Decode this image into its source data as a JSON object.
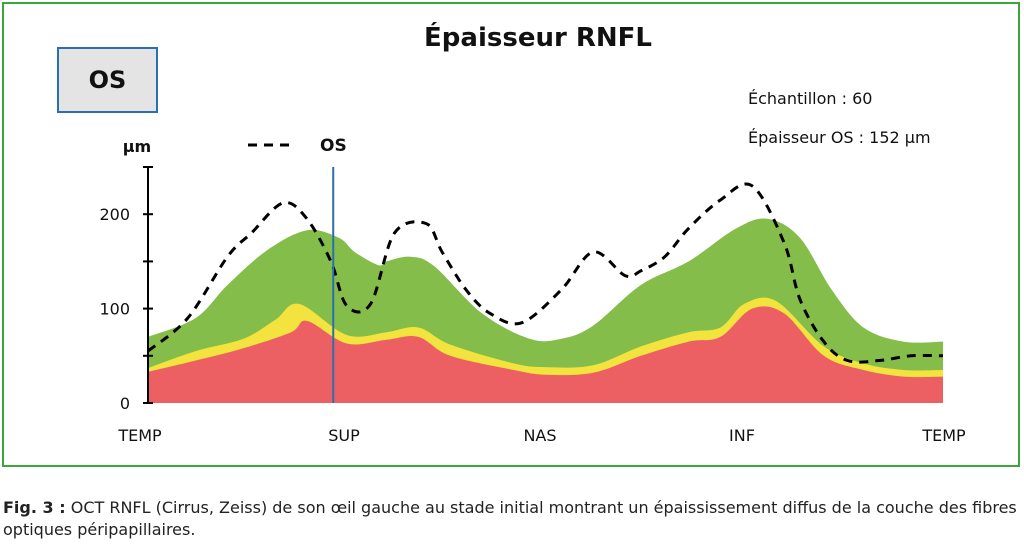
{
  "eye_label": "OS",
  "caption": {
    "fig_label": "Fig. 3 :",
    "text": "OCT RNFL (Cirrus, Zeiss) de son œil gauche au stade initial montrant un épaississement diffus de la couche des fibres optiques péripapillaires."
  },
  "info": {
    "sample": "Échantillon : 60",
    "thickness": "Épaisseur OS : 152 µm"
  },
  "chart_data": {
    "type": "area",
    "title": "Épaisseur RNFL",
    "ylabel": "µm",
    "ylim": [
      0,
      250
    ],
    "yticks": [
      0,
      100,
      200
    ],
    "xlim": [
      0,
      1
    ],
    "x_categories": [
      "TEMP",
      "SUP",
      "NAS",
      "INF",
      "TEMP"
    ],
    "x_category_positions": [
      0,
      0.25,
      0.5,
      0.75,
      1
    ],
    "grid": false,
    "legend": {
      "position": "top",
      "entries": [
        {
          "name": "OS",
          "style": "dashed-black"
        }
      ]
    },
    "marker_line": {
      "x": 0.233,
      "color": "#2c6fb0"
    },
    "colors": {
      "red": "#ec6064",
      "yellow": "#f2e33e",
      "green": "#85bd4b",
      "os": "#000000"
    },
    "bands": [
      {
        "color": "red",
        "x": [
          0,
          0.06,
          0.12,
          0.18,
          0.2,
          0.25,
          0.3,
          0.34,
          0.38,
          0.46,
          0.5,
          0.56,
          0.62,
          0.68,
          0.72,
          0.76,
          0.8,
          0.85,
          0.9,
          0.95,
          1
        ],
        "y": [
          33,
          45,
          58,
          75,
          87,
          63,
          67,
          70,
          50,
          35,
          30,
          32,
          50,
          65,
          70,
          100,
          95,
          50,
          35,
          28,
          28
        ]
      },
      {
        "color": "yellow",
        "x": [
          0,
          0.06,
          0.12,
          0.16,
          0.19,
          0.25,
          0.3,
          0.34,
          0.38,
          0.46,
          0.5,
          0.56,
          0.62,
          0.68,
          0.72,
          0.75,
          0.79,
          0.85,
          0.9,
          0.95,
          1
        ],
        "y": [
          37,
          55,
          68,
          88,
          105,
          72,
          75,
          80,
          62,
          42,
          38,
          40,
          60,
          75,
          80,
          105,
          108,
          60,
          42,
          35,
          35
        ]
      },
      {
        "color": "green",
        "x": [
          0,
          0.06,
          0.1,
          0.15,
          0.2,
          0.24,
          0.26,
          0.29,
          0.3,
          0.33,
          0.36,
          0.42,
          0.48,
          0.52,
          0.56,
          0.62,
          0.68,
          0.74,
          0.78,
          0.82,
          0.86,
          0.9,
          0.95,
          1
        ],
        "y": [
          70,
          90,
          125,
          162,
          183,
          175,
          160,
          146,
          150,
          155,
          145,
          95,
          68,
          68,
          82,
          125,
          150,
          185,
          195,
          175,
          120,
          80,
          65,
          65
        ]
      }
    ],
    "series": [
      {
        "name": "OS",
        "style": "dashed",
        "x": [
          0,
          0.05,
          0.1,
          0.13,
          0.17,
          0.2,
          0.23,
          0.25,
          0.28,
          0.31,
          0.35,
          0.37,
          0.4,
          0.43,
          0.47,
          0.52,
          0.56,
          0.6,
          0.62,
          0.65,
          0.68,
          0.72,
          0.76,
          0.8,
          0.82,
          0.85,
          0.88,
          0.92,
          0.96,
          1
        ],
        "y": [
          55,
          90,
          155,
          180,
          212,
          195,
          150,
          103,
          105,
          180,
          190,
          160,
          120,
          95,
          85,
          120,
          160,
          135,
          140,
          155,
          185,
          215,
          230,
          170,
          110,
          65,
          45,
          45,
          50,
          50
        ]
      }
    ]
  }
}
